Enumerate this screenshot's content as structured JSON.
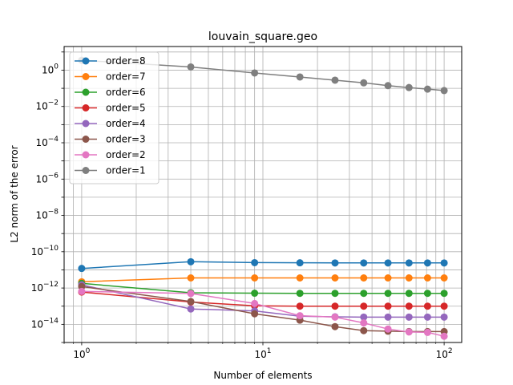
{
  "chart_data": {
    "type": "line",
    "title": "louvain_square.geo",
    "xlabel": "Number of elements",
    "ylabel": "L2 norm of the error",
    "xscale": "log",
    "yscale": "log",
    "xlim": [
      0.8,
      125
    ],
    "ylim": [
      1e-15,
      20.0
    ],
    "grid": true,
    "legend_position": "upper-left",
    "x": [
      1,
      4,
      9,
      16,
      25,
      36,
      49,
      64,
      81,
      100
    ],
    "x_ticks": [
      {
        "value": 1,
        "base": "10",
        "exp": "0"
      },
      {
        "value": 10,
        "base": "10",
        "exp": "1"
      },
      {
        "value": 100,
        "base": "10",
        "exp": "2"
      }
    ],
    "y_ticks": [
      {
        "value": 1e-14,
        "base": "10",
        "exp": "−14"
      },
      {
        "value": 1e-12,
        "base": "10",
        "exp": "−12"
      },
      {
        "value": 1e-10,
        "base": "10",
        "exp": "−10"
      },
      {
        "value": 1e-08,
        "base": "10",
        "exp": "−8"
      },
      {
        "value": 1e-06,
        "base": "10",
        "exp": "−6"
      },
      {
        "value": 0.0001,
        "base": "10",
        "exp": "−4"
      },
      {
        "value": 0.01,
        "base": "10",
        "exp": "−2"
      },
      {
        "value": 1,
        "base": "10",
        "exp": "0"
      }
    ],
    "series": [
      {
        "name": "order=8",
        "color": "#1f77b4",
        "values": [
          1.2e-11,
          2.8e-11,
          2.5e-11,
          2.45e-11,
          2.4e-11,
          2.4e-11,
          2.4e-11,
          2.4e-11,
          2.4e-11,
          2.4e-11
        ]
      },
      {
        "name": "order=7",
        "color": "#ff7f0e",
        "values": [
          2.2e-12,
          3.6e-12,
          3.6e-12,
          3.6e-12,
          3.6e-12,
          3.6e-12,
          3.6e-12,
          3.6e-12,
          3.6e-12,
          3.6e-12
        ]
      },
      {
        "name": "order=6",
        "color": "#2ca02c",
        "values": [
          1.8e-12,
          5.5e-13,
          5.2e-13,
          5.1e-13,
          5.1e-13,
          5.1e-13,
          5.1e-13,
          5.1e-13,
          5.1e-13,
          5.1e-13
        ]
      },
      {
        "name": "order=5",
        "color": "#d62728",
        "values": [
          6e-13,
          1.7e-13,
          1.05e-13,
          1e-13,
          1e-13,
          1e-13,
          1e-13,
          1e-13,
          1e-13,
          1e-13
        ]
      },
      {
        "name": "order=4",
        "color": "#9467bd",
        "values": [
          1.5e-12,
          7e-14,
          5.5e-14,
          2.8e-14,
          2.6e-14,
          2.5e-14,
          2.5e-14,
          2.5e-14,
          2.5e-14,
          2.5e-14
        ]
      },
      {
        "name": "order=3",
        "color": "#8c564b",
        "values": [
          1.2e-12,
          1.8e-13,
          3.8e-14,
          1.7e-14,
          7.5e-15,
          4.5e-15,
          4.2e-15,
          4e-15,
          4e-15,
          4e-15
        ]
      },
      {
        "name": "order=2",
        "color": "#e377c2",
        "values": [
          6.5e-13,
          5e-13,
          1.4e-13,
          3e-14,
          2.5e-14,
          1.2e-14,
          5.5e-15,
          3.8e-15,
          3.6e-15,
          2.2e-15
        ]
      },
      {
        "name": "order=1",
        "color": "#7f7f7f",
        "values": [
          3.5,
          1.5,
          0.7,
          0.42,
          0.28,
          0.2,
          0.14,
          0.11,
          0.09,
          0.075
        ]
      }
    ]
  }
}
